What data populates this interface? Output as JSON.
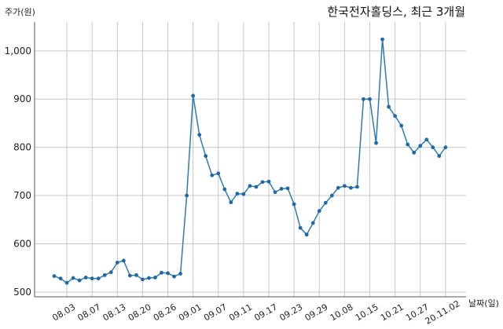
{
  "chart_data": {
    "type": "line",
    "title": "한국전자홀딩스, 최근 3개월",
    "ylabel": "주가(원)",
    "xlabel": "날짜(일)",
    "ylim": [
      490,
      1060
    ],
    "grid": true,
    "yticks": [
      500,
      600,
      700,
      800,
      900,
      1000
    ],
    "ytick_labels": [
      "500",
      "600",
      "700",
      "800",
      "900",
      "1,000"
    ],
    "xtick_labels": [
      "08.03",
      "08.07",
      "08.13",
      "08.20",
      "08.26",
      "09.01",
      "09.07",
      "09.11",
      "09.17",
      "09.23",
      "09.29",
      "10.08",
      "10.15",
      "10.21",
      "10.27",
      "20.11.02"
    ],
    "xtick_index": [
      2,
      6,
      10,
      14,
      18,
      22,
      26,
      30,
      34,
      38,
      42,
      46,
      50,
      54,
      58,
      62
    ],
    "series": [
      {
        "values": [
          533,
          528,
          519,
          529,
          524,
          530,
          528,
          528,
          535,
          541,
          561,
          565,
          534,
          535,
          526,
          529,
          530,
          540,
          539,
          532,
          538,
          700,
          907,
          826,
          782,
          742,
          746,
          713,
          686,
          704,
          703,
          720,
          718,
          728,
          729,
          707,
          714,
          715,
          682,
          633,
          619,
          643,
          668,
          685,
          700,
          716,
          720,
          716,
          718,
          900,
          900,
          809,
          1024,
          884,
          865,
          845,
          806,
          789,
          803,
          816,
          800,
          782,
          800
        ]
      }
    ]
  }
}
